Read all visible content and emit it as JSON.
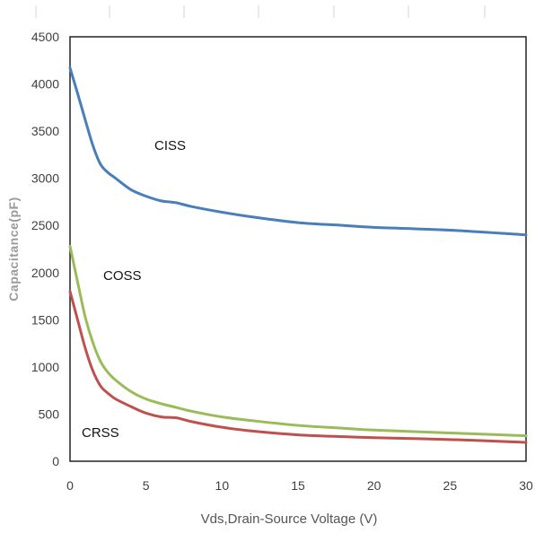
{
  "chart_data": {
    "type": "line",
    "title": "",
    "xlabel": "Vds,Drain-Source Voltage (V)",
    "ylabel": "Capacitance(pF)",
    "xlim": [
      0,
      30
    ],
    "ylim": [
      0,
      4500
    ],
    "xticks": [
      "0",
      "5",
      "10",
      "15",
      "20",
      "25",
      "30"
    ],
    "yticks": [
      "0",
      "500",
      "1000",
      "1500",
      "2000",
      "2500",
      "3000",
      "3500",
      "4000",
      "4500"
    ],
    "grid": false,
    "series": [
      {
        "name": "CISS",
        "color": "#4a7ebb",
        "x": [
          0,
          0.5,
          1,
          1.5,
          2,
          2.5,
          3,
          4,
          5,
          6,
          7,
          8,
          10,
          12,
          15,
          18,
          20,
          25,
          30
        ],
        "y": [
          4170,
          3900,
          3620,
          3350,
          3150,
          3060,
          3000,
          2880,
          2810,
          2760,
          2740,
          2700,
          2640,
          2590,
          2530,
          2500,
          2480,
          2450,
          2400
        ]
      },
      {
        "name": "COSS",
        "color": "#9bbb59",
        "x": [
          0,
          0.5,
          1,
          1.5,
          2,
          2.5,
          3,
          4,
          5,
          6,
          7,
          8,
          10,
          12,
          15,
          18,
          20,
          25,
          30
        ],
        "y": [
          2280,
          1900,
          1530,
          1260,
          1060,
          940,
          860,
          740,
          660,
          610,
          570,
          530,
          470,
          430,
          380,
          350,
          330,
          300,
          270
        ]
      },
      {
        "name": "CRSS",
        "color": "#c0504d",
        "x": [
          0,
          0.5,
          1,
          1.5,
          2,
          2.5,
          3,
          4,
          5,
          6,
          7,
          8,
          10,
          12,
          15,
          18,
          20,
          25,
          30
        ],
        "y": [
          1800,
          1500,
          1200,
          960,
          800,
          720,
          660,
          580,
          510,
          470,
          460,
          420,
          360,
          320,
          280,
          260,
          250,
          230,
          200
        ]
      }
    ],
    "annotations": [
      "CISS",
      "COSS",
      "CRSS"
    ]
  }
}
